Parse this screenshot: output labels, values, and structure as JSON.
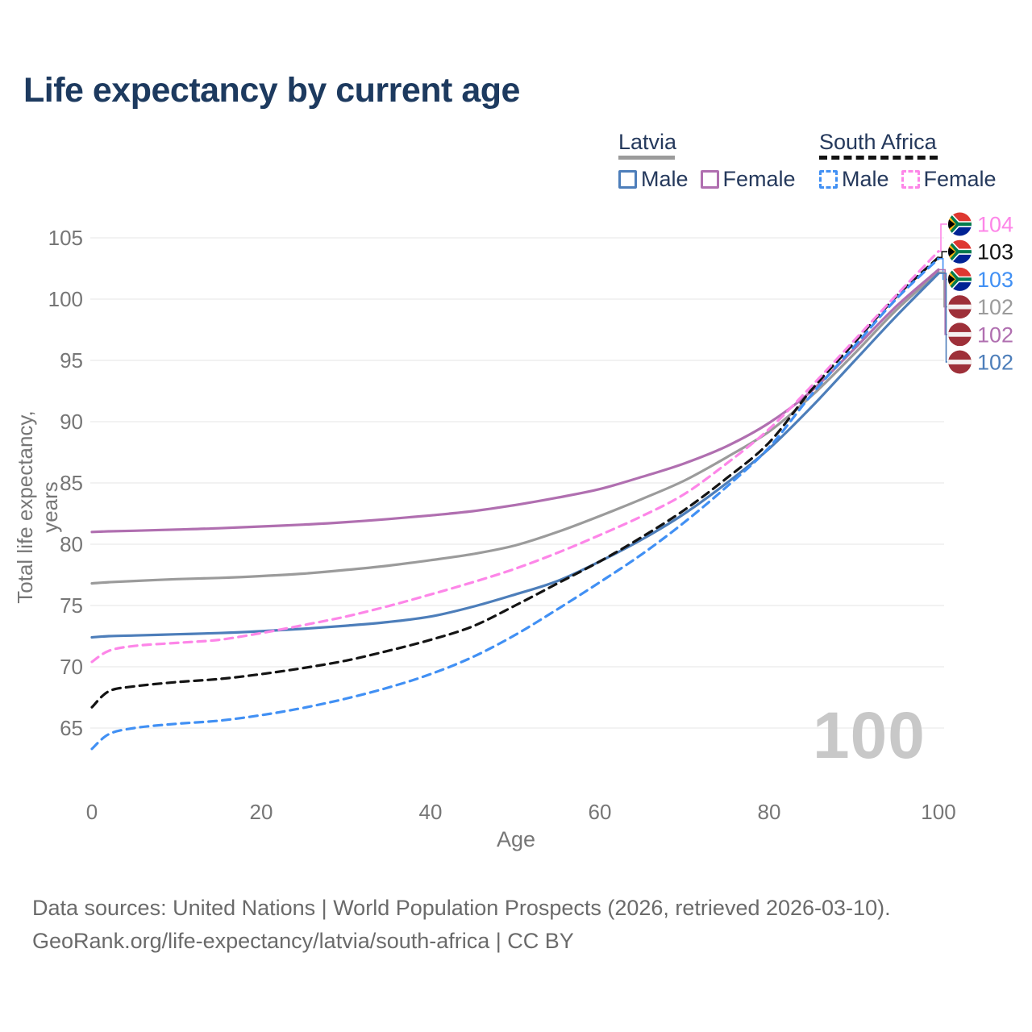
{
  "title": "Life expectancy by current age",
  "legend": {
    "latvia": {
      "title": "Latvia",
      "male": "Male",
      "female": "Female"
    },
    "south_africa": {
      "title": "South Africa",
      "male": "Male",
      "female": "Female"
    }
  },
  "axes": {
    "x": {
      "title": "Age",
      "ticks": [
        "0",
        "20",
        "40",
        "60",
        "80",
        "100"
      ]
    },
    "y": {
      "title": "Total life expectancy, years",
      "ticks": [
        "65",
        "70",
        "75",
        "80",
        "85",
        "90",
        "95",
        "100",
        "105"
      ]
    }
  },
  "watermark": "100",
  "footer": {
    "line1": "Data sources: United Nations | World Population Prospects (2026, retrieved 2026-03-10).",
    "line2": "GeoRank.org/life-expectancy/latvia/south-africa | CC BY"
  },
  "chart_data": {
    "type": "line",
    "title": "Life expectancy by current age",
    "xlabel": "Age",
    "ylabel": "Total life expectancy, years",
    "xlim": [
      0,
      100
    ],
    "ylim": [
      62,
      106
    ],
    "grid": "horizontal",
    "x": [
      0,
      2,
      5,
      10,
      15,
      20,
      25,
      30,
      35,
      40,
      45,
      50,
      55,
      60,
      65,
      70,
      75,
      80,
      85,
      90,
      95,
      100
    ],
    "series": [
      {
        "name": "Latvia Total",
        "country": "latvia",
        "group": "Total",
        "style": "solid",
        "color": "#9b9b9b",
        "values": [
          76.8,
          76.9,
          77.0,
          77.15,
          77.25,
          77.4,
          77.6,
          77.9,
          78.25,
          78.7,
          79.2,
          79.9,
          81.0,
          82.3,
          83.7,
          85.2,
          87.1,
          89.2,
          92.1,
          95.5,
          99.1,
          102.2
        ]
      },
      {
        "name": "Latvia Female",
        "country": "latvia",
        "group": "Female",
        "style": "solid",
        "color": "#b06fb0",
        "values": [
          81.0,
          81.05,
          81.1,
          81.2,
          81.3,
          81.45,
          81.6,
          81.8,
          82.05,
          82.35,
          82.7,
          83.2,
          83.8,
          84.5,
          85.5,
          86.6,
          88.0,
          89.9,
          92.5,
          95.9,
          99.4,
          102.4
        ]
      },
      {
        "name": "Latvia Male",
        "country": "latvia",
        "group": "Male",
        "style": "solid",
        "color": "#4d7eba",
        "values": [
          72.4,
          72.5,
          72.55,
          72.65,
          72.75,
          72.9,
          73.1,
          73.35,
          73.65,
          74.1,
          74.9,
          75.9,
          77.0,
          78.6,
          80.4,
          82.5,
          85.0,
          87.8,
          91.2,
          94.9,
          98.6,
          102.1
        ]
      },
      {
        "name": "South Africa Total",
        "country": "south_africa",
        "group": "Total",
        "style": "dashed",
        "color": "#141414",
        "values": [
          66.7,
          68.0,
          68.4,
          68.75,
          69.0,
          69.4,
          69.9,
          70.5,
          71.3,
          72.2,
          73.3,
          75.0,
          76.8,
          78.6,
          80.6,
          82.8,
          85.4,
          88.3,
          92.6,
          96.4,
          100.2,
          103.4
        ]
      },
      {
        "name": "South Africa Female",
        "country": "south_africa",
        "group": "Female",
        "style": "dashed",
        "color": "#fd86e8",
        "values": [
          70.4,
          71.3,
          71.7,
          71.95,
          72.2,
          72.75,
          73.4,
          74.1,
          74.95,
          75.9,
          76.9,
          78.0,
          79.3,
          80.75,
          82.3,
          84.1,
          86.6,
          89.4,
          92.9,
          96.6,
          100.3,
          103.9
        ]
      },
      {
        "name": "South Africa Male",
        "country": "south_africa",
        "group": "Male",
        "style": "dashed",
        "color": "#4190f4",
        "values": [
          63.3,
          64.5,
          65.0,
          65.35,
          65.6,
          66.05,
          66.65,
          67.4,
          68.3,
          69.4,
          70.8,
          72.6,
          74.7,
          76.9,
          79.2,
          81.8,
          84.7,
          87.9,
          92.2,
          96.1,
          100.0,
          103.3
        ]
      }
    ],
    "end_labels": [
      {
        "label": "104",
        "series": "South Africa Female"
      },
      {
        "label": "103",
        "series": "South Africa Total"
      },
      {
        "label": "103",
        "series": "South Africa Male"
      },
      {
        "label": "102",
        "series": "Latvia Total"
      },
      {
        "label": "102",
        "series": "Latvia Female"
      },
      {
        "label": "102",
        "series": "Latvia Male"
      }
    ],
    "legend_position": "top-right",
    "flag_colors": {
      "latvia": {
        "field": "#9E3039",
        "band": "#f5f1f1"
      },
      "south_africa": {
        "red": "#de3831",
        "blue": "#002395",
        "green": "#007a4d",
        "yellow": "#ffb612",
        "black": "#000000",
        "white": "#ffffff"
      }
    },
    "grid_color": "#e9e9e9",
    "tick_color": "#767676"
  }
}
